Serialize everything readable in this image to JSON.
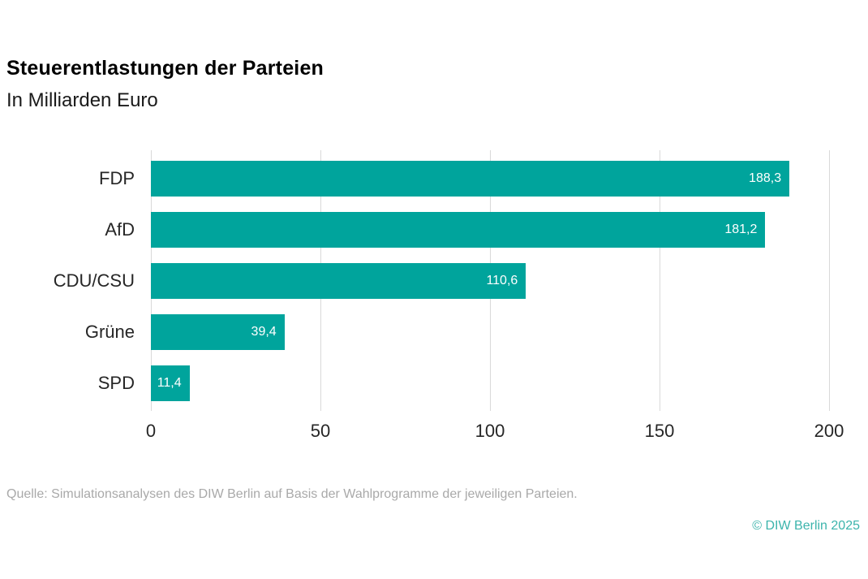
{
  "chart_data": {
    "type": "bar",
    "orientation": "horizontal",
    "title": "Steuerentlastungen der Parteien",
    "subtitle": "In Milliarden Euro",
    "categories": [
      "FDP",
      "AfD",
      "CDU/CSU",
      "Grüne",
      "SPD"
    ],
    "values": [
      188.3,
      181.2,
      110.6,
      39.4,
      11.4
    ],
    "value_labels": [
      "188,3",
      "181,2",
      "110,6",
      "39,4",
      "11,4"
    ],
    "xlim": [
      0,
      200
    ],
    "xticks": [
      0,
      50,
      100,
      150,
      200
    ],
    "xtick_labels": [
      "0",
      "50",
      "100",
      "150",
      "200"
    ],
    "grid": true,
    "legend": "none",
    "bar_color": "#00a49c",
    "value_label_color": "#ffffff",
    "gridline_color": "#d9d9d9"
  },
  "footer": {
    "source": "Quelle: Simulationsanalysen des DIW Berlin auf Basis der Wahlprogramme der jeweiligen Parteien.",
    "copyright": "© DIW Berlin 2025",
    "copyright_color": "#3cb4ac"
  }
}
